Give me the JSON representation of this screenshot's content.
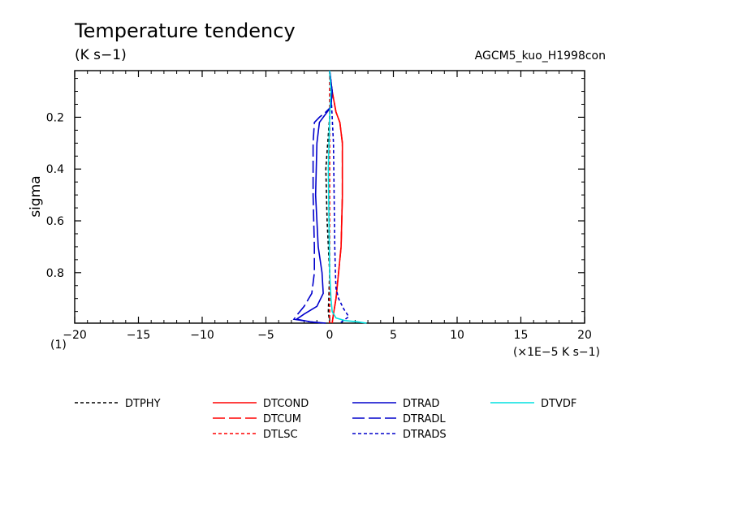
{
  "chart_data": {
    "type": "line",
    "title": "Temperature tendency",
    "units": "(K s−1)",
    "experiment": "AGCM5_kuo_H1998con",
    "ylabel": "sigma",
    "xunits_label": "(×1E−5 K s−1)",
    "corner_label": "(1)",
    "xlim": [
      -20,
      20
    ],
    "ylim": [
      0.02,
      0.995
    ],
    "y_inverted": true,
    "xticks": [
      {
        "value": -20,
        "label": "−20"
      },
      {
        "value": -15,
        "label": "−15"
      },
      {
        "value": -10,
        "label": "−10"
      },
      {
        "value": -5,
        "label": "−5"
      },
      {
        "value": 0,
        "label": "0"
      },
      {
        "value": 5,
        "label": "5"
      },
      {
        "value": 10,
        "label": "10"
      },
      {
        "value": 15,
        "label": "15"
      },
      {
        "value": 20,
        "label": "20"
      }
    ],
    "yticks": [
      {
        "value": 0.2,
        "label": "0.2"
      },
      {
        "value": 0.4,
        "label": "0.4"
      },
      {
        "value": 0.6,
        "label": "0.6"
      },
      {
        "value": 0.8,
        "label": "0.8"
      }
    ],
    "grid": false,
    "legend_position": "bottom",
    "series": [
      {
        "name": "DTPHY",
        "color": "#000000",
        "dash": "short",
        "x": [
          0.0,
          0.1,
          0.0,
          -0.3,
          -0.2,
          0.0,
          -0.1,
          0.0
        ],
        "y": [
          0.02,
          0.1,
          0.2,
          0.4,
          0.6,
          0.8,
          0.95,
          0.995
        ]
      },
      {
        "name": "DTCOND",
        "color": "#ff0000",
        "dash": "solid",
        "x": [
          0.0,
          0.2,
          0.5,
          0.8,
          1.0,
          1.0,
          0.9,
          0.7,
          0.5,
          0.3,
          0.2
        ],
        "y": [
          0.02,
          0.1,
          0.18,
          0.22,
          0.3,
          0.5,
          0.7,
          0.8,
          0.9,
          0.96,
          0.995
        ]
      },
      {
        "name": "DTCUM",
        "color": "#ff0000",
        "dash": "long",
        "x": [
          0.0,
          0.2,
          0.5,
          0.8,
          1.0,
          1.0,
          0.9,
          0.7,
          0.5,
          0.3,
          0.2
        ],
        "y": [
          0.02,
          0.1,
          0.18,
          0.22,
          0.3,
          0.5,
          0.7,
          0.8,
          0.9,
          0.96,
          0.995
        ]
      },
      {
        "name": "DTLSC",
        "color": "#ff0000",
        "dash": "short",
        "x": [
          0.0,
          0.0,
          0.0,
          0.0,
          0.0,
          0.0,
          0.0
        ],
        "y": [
          0.02,
          0.2,
          0.4,
          0.6,
          0.8,
          0.95,
          0.995
        ]
      },
      {
        "name": "DTRAD",
        "color": "#0000cc",
        "dash": "solid",
        "x": [
          0.0,
          0.2,
          0.1,
          -0.2,
          -0.5,
          -0.8,
          -1.0,
          -1.1,
          -0.9,
          -0.6,
          -0.5,
          -1.0,
          -2.0,
          -2.6,
          -1.5,
          -0.3
        ],
        "y": [
          0.02,
          0.1,
          0.16,
          0.18,
          0.2,
          0.22,
          0.3,
          0.5,
          0.7,
          0.8,
          0.88,
          0.93,
          0.96,
          0.98,
          0.99,
          0.995
        ]
      },
      {
        "name": "DTRADL",
        "color": "#0000cc",
        "dash": "long",
        "x": [
          0.0,
          0.2,
          0.1,
          -0.3,
          -0.8,
          -1.2,
          -1.3,
          -1.3,
          -1.2,
          -1.2,
          -1.4,
          -2.0,
          -2.5,
          -2.8,
          -1.5,
          -0.5
        ],
        "y": [
          0.02,
          0.1,
          0.16,
          0.18,
          0.2,
          0.22,
          0.3,
          0.5,
          0.7,
          0.8,
          0.88,
          0.93,
          0.96,
          0.98,
          0.99,
          0.995
        ]
      },
      {
        "name": "DTRADS",
        "color": "#0000cc",
        "dash": "short",
        "x": [
          0.0,
          0.1,
          0.2,
          0.3,
          0.35,
          0.4,
          0.45,
          0.5,
          0.7,
          1.1,
          1.5,
          0.8
        ],
        "y": [
          0.02,
          0.1,
          0.2,
          0.3,
          0.5,
          0.7,
          0.8,
          0.86,
          0.9,
          0.94,
          0.97,
          0.995
        ]
      },
      {
        "name": "DTVDF",
        "color": "#00e0e0",
        "dash": "solid",
        "x": [
          0.0,
          0.1,
          0.0,
          -0.1,
          -0.05,
          0.0,
          0.1,
          0.2,
          0.5,
          1.2,
          2.2,
          2.9
        ],
        "y": [
          0.02,
          0.1,
          0.2,
          0.4,
          0.6,
          0.8,
          0.9,
          0.95,
          0.975,
          0.985,
          0.99,
          0.995
        ]
      }
    ]
  }
}
